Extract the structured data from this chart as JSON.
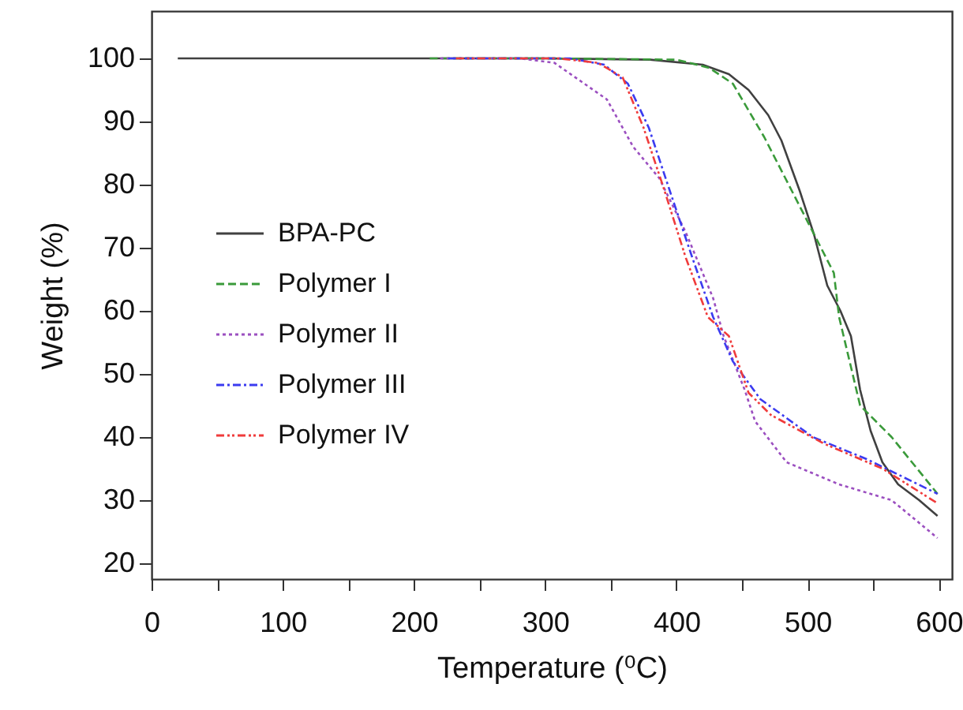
{
  "chart_data": {
    "type": "line",
    "xlabel": "Temperature (⁰C)",
    "ylabel": "Weight (%)",
    "xlim": [
      0,
      610
    ],
    "ylim": [
      17.5,
      107.5
    ],
    "xticks": [
      0,
      {
        "value": 50,
        "label": null
      },
      100,
      {
        "value": 150,
        "label": null
      },
      200,
      {
        "value": 250,
        "label": null
      },
      300,
      {
        "value": 350,
        "label": null
      },
      400,
      {
        "value": 450,
        "label": null
      },
      500,
      {
        "value": 550,
        "label": null
      },
      600
    ],
    "yticks": [
      20,
      30,
      40,
      50,
      60,
      70,
      80,
      90,
      100
    ],
    "grid": false,
    "legend": "left",
    "marker": "none",
    "series": [
      {
        "name": "BPA-PC",
        "color": "#404040",
        "line_style": "solid",
        "x": [
          20,
          300,
          380,
          420,
          440,
          455,
          470,
          480,
          494,
          505,
          515,
          525,
          533,
          540,
          548,
          557,
          569,
          585,
          599
        ],
        "values": [
          100,
          100,
          99.8,
          99,
          97.5,
          95,
          91,
          87,
          79,
          72,
          64,
          60,
          56,
          47.5,
          41,
          36,
          32.5,
          30,
          27.5
        ]
      },
      {
        "name": "Polymer I",
        "color": "#3a9a3a",
        "line_style": "dashed",
        "x": [
          212,
          300,
          400,
          425,
          443,
          467,
          488,
          504,
          520,
          524,
          540,
          564,
          599
        ],
        "values": [
          100,
          100,
          99.8,
          98.5,
          96,
          87.5,
          79,
          72.5,
          66,
          59,
          45,
          40,
          31
        ]
      },
      {
        "name": "Polymer II",
        "color": "#9b4fc0",
        "line_style": "dotted",
        "x": [
          220,
          280,
          307,
          347,
          367,
          387,
          407,
          428,
          436,
          452,
          460,
          484,
          524,
          564,
          599
        ],
        "values": [
          100,
          100,
          99.3,
          93.5,
          86,
          81,
          72.5,
          62,
          56,
          47.5,
          42.5,
          36,
          32.5,
          30,
          24
        ]
      },
      {
        "name": "Polymer III",
        "color": "#3b3bf0",
        "line_style": "dashdot",
        "x": [
          226,
          319,
          345,
          363,
          379,
          395,
          412,
          428,
          443,
          464,
          504,
          545,
          599
        ],
        "values": [
          100,
          100,
          99,
          96,
          89,
          79,
          68.5,
          59,
          52,
          46,
          40,
          36.5,
          31
        ]
      },
      {
        "name": "Polymer IV",
        "color": "#f03b3b",
        "line_style": "dashdotdot",
        "x": [
          232,
          310,
          340,
          359,
          375,
          391,
          407,
          424,
          440,
          455,
          472,
          512,
          557,
          599
        ],
        "values": [
          100,
          100,
          99.3,
          97,
          89,
          79,
          68.5,
          59,
          56,
          47,
          43.5,
          39,
          35,
          29.5
        ]
      }
    ]
  }
}
